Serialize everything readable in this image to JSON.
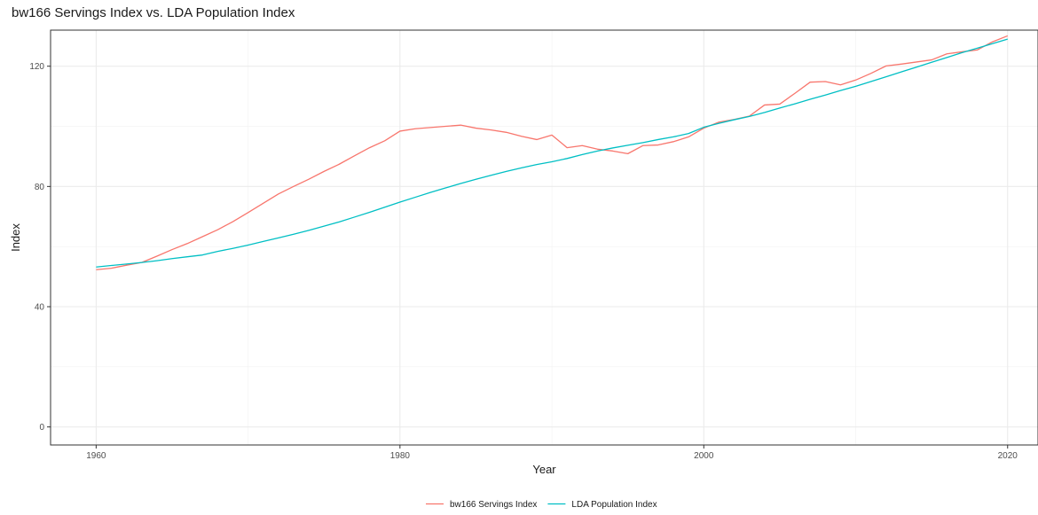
{
  "chart_data": {
    "type": "line",
    "title": "bw166 Servings Index vs. LDA Population Index",
    "xlabel": "Year",
    "ylabel": "Index",
    "xlim": [
      1957,
      2022
    ],
    "ylim": [
      -6,
      132
    ],
    "x_ticks": [
      1960,
      1980,
      2000,
      2020
    ],
    "y_ticks": [
      0,
      40,
      80,
      120
    ],
    "grid": true,
    "legend_position": "bottom",
    "x": [
      1960,
      1961,
      1962,
      1963,
      1964,
      1965,
      1966,
      1967,
      1968,
      1969,
      1970,
      1971,
      1972,
      1973,
      1974,
      1975,
      1976,
      1977,
      1978,
      1979,
      1980,
      1981,
      1982,
      1983,
      1984,
      1985,
      1986,
      1987,
      1988,
      1989,
      1990,
      1991,
      1992,
      1993,
      1994,
      1995,
      1996,
      1997,
      1998,
      1999,
      2000,
      2001,
      2002,
      2003,
      2004,
      2005,
      2006,
      2007,
      2008,
      2009,
      2010,
      2011,
      2012,
      2013,
      2014,
      2015,
      2016,
      2017,
      2018,
      2019,
      2020
    ],
    "series": [
      {
        "name": "bw166 Servings Index",
        "color": "#f8766d",
        "values": [
          52.3,
          52.8,
          53.8,
          54.7,
          56.8,
          59.0,
          61.0,
          63.3,
          65.6,
          68.3,
          71.3,
          74.4,
          77.5,
          80.0,
          82.4,
          85.0,
          87.4,
          90.2,
          92.9,
          95.2,
          98.4,
          99.2,
          99.6,
          100.0,
          100.4,
          99.4,
          98.8,
          98.0,
          96.7,
          95.6,
          97.1,
          92.9,
          93.6,
          92.4,
          91.8,
          90.9,
          93.6,
          93.8,
          94.9,
          96.5,
          99.4,
          101.4,
          102.3,
          103.4,
          107.1,
          107.4,
          111.0,
          114.7,
          114.9,
          113.8,
          115.4,
          117.6,
          120.1,
          120.7,
          121.4,
          122.1,
          124.1,
          124.8,
          125.4,
          128.1,
          130.1
        ]
      },
      {
        "name": "LDA Population Index",
        "color": "#00bfc4",
        "values": [
          53.2,
          53.7,
          54.2,
          54.7,
          55.3,
          56.0,
          56.6,
          57.2,
          58.4,
          59.4,
          60.5,
          61.7,
          62.9,
          64.1,
          65.4,
          66.8,
          68.2,
          69.8,
          71.4,
          73.1,
          74.8,
          76.4,
          78.0,
          79.5,
          81.0,
          82.4,
          83.7,
          85.0,
          86.2,
          87.3,
          88.2,
          89.3,
          90.6,
          91.8,
          92.8,
          93.7,
          94.6,
          95.6,
          96.5,
          97.6,
          99.7,
          101.0,
          102.2,
          103.3,
          104.6,
          106.1,
          107.5,
          109.0,
          110.4,
          111.9,
          113.3,
          114.9,
          116.5,
          118.1,
          119.7,
          121.3,
          122.9,
          124.5,
          126.0,
          127.5,
          129.0
        ]
      }
    ]
  }
}
